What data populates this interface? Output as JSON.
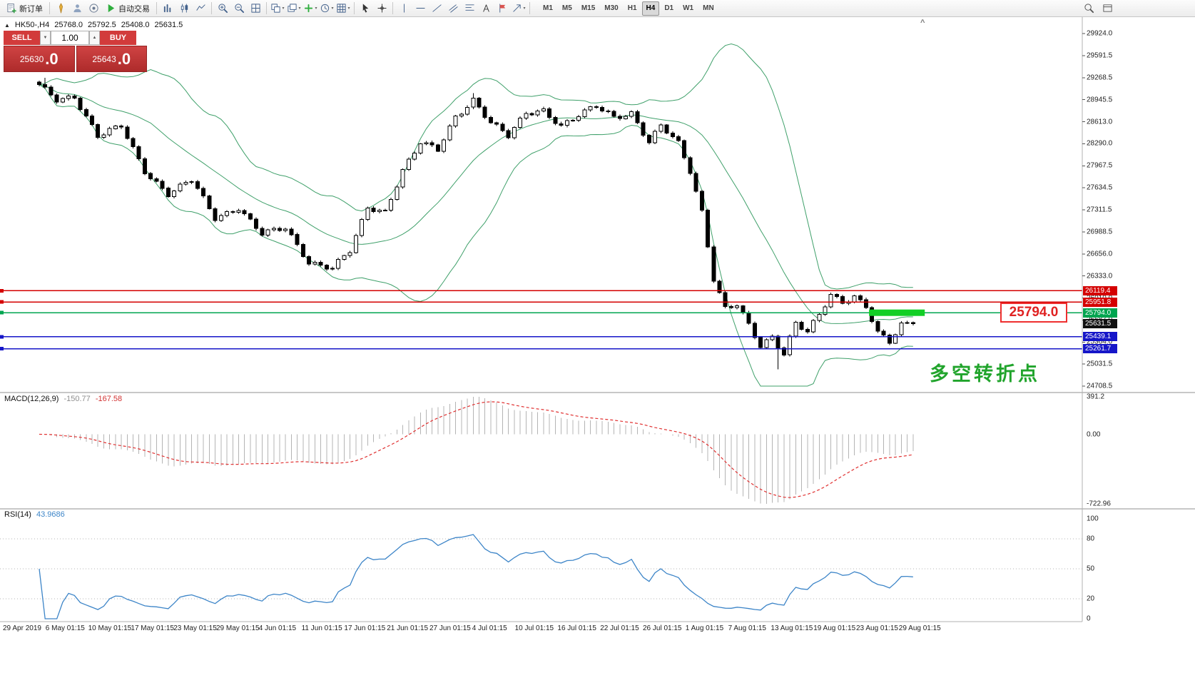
{
  "icons": {
    "caret_down": "▼",
    "caret_up": "▲",
    "dropdown": "▾",
    "panel_toggle": "▲",
    "shift": "^"
  },
  "toolbar": {
    "new_order_label": "新订单",
    "algo_label": "自动交易",
    "timeframes": [
      "M1",
      "M5",
      "M15",
      "M30",
      "H1",
      "H4",
      "D1",
      "W1",
      "MN"
    ],
    "active_timeframe": "H4"
  },
  "header": {
    "symbol_period": "HK50-,H4",
    "open": "25768.0",
    "high": "25792.5",
    "low": "25408.0",
    "close": "25631.5"
  },
  "trade": {
    "sell_label": "SELL",
    "buy_label": "BUY",
    "volume": "1.00",
    "sell_price": "25630",
    "sell_frac": ".0",
    "buy_price": "25643",
    "buy_frac": ".0"
  },
  "chart": {
    "bars": 150,
    "candle_keyframes": [
      [
        0,
        29150
      ],
      [
        3,
        28950
      ],
      [
        6,
        29000
      ],
      [
        10,
        28400
      ],
      [
        14,
        28550
      ],
      [
        18,
        27900
      ],
      [
        22,
        27550
      ],
      [
        26,
        27750
      ],
      [
        30,
        27200
      ],
      [
        34,
        27350
      ],
      [
        38,
        26950
      ],
      [
        42,
        27050
      ],
      [
        46,
        26550
      ],
      [
        50,
        26450
      ],
      [
        53,
        26700
      ],
      [
        56,
        27350
      ],
      [
        59,
        27300
      ],
      [
        62,
        27900
      ],
      [
        65,
        28300
      ],
      [
        68,
        28200
      ],
      [
        71,
        28700
      ],
      [
        74,
        28950
      ],
      [
        77,
        28600
      ],
      [
        80,
        28400
      ],
      [
        83,
        28750
      ],
      [
        86,
        28800
      ],
      [
        89,
        28550
      ],
      [
        92,
        28700
      ],
      [
        95,
        28850
      ],
      [
        98,
        28700
      ],
      [
        101,
        28750
      ],
      [
        104,
        28300
      ],
      [
        106,
        28550
      ],
      [
        109,
        28300
      ],
      [
        111,
        27900
      ],
      [
        113,
        27300
      ],
      [
        115,
        26300
      ],
      [
        117,
        25850
      ],
      [
        119,
        25900
      ],
      [
        121,
        25600
      ],
      [
        123,
        25300
      ],
      [
        125,
        25450
      ],
      [
        127,
        25200
      ],
      [
        129,
        25650
      ],
      [
        131,
        25500
      ],
      [
        133,
        25750
      ],
      [
        135,
        26050
      ],
      [
        137,
        25950
      ],
      [
        139,
        26050
      ],
      [
        141,
        25900
      ],
      [
        143,
        25500
      ],
      [
        145,
        25350
      ],
      [
        147,
        25600
      ],
      [
        149,
        25631.5
      ]
    ],
    "wick_overrides": [
      {
        "i": 1,
        "high": 29270
      },
      {
        "i": 74,
        "high": 29040
      },
      {
        "i": 126,
        "low": 24958
      }
    ],
    "hlines": [
      {
        "price": 26119.4,
        "label": "26119.4",
        "color": "#d40000"
      },
      {
        "price": 25951.8,
        "label": "25951.8",
        "color": "#d40000"
      },
      {
        "price": 25794.0,
        "label": "25794.0",
        "color": "#00a550"
      },
      {
        "price": 25439.1,
        "label": "25439.1",
        "color": "#1616c8"
      },
      {
        "price": 25261.7,
        "label": "25261.7",
        "color": "#1616c8"
      }
    ],
    "bid": {
      "price": 25631.5,
      "label": "25631.5"
    },
    "highlight_rect": {
      "price": 25794.0,
      "from_bar": 141.5,
      "to_bar": 151
    },
    "callout": "25794.0",
    "annotation": "多空转折点",
    "price_axis_labels": [
      "29924.0",
      "29591.5",
      "29268.5",
      "28945.5",
      "28613.0",
      "28290.0",
      "27967.5",
      "27634.5",
      "27311.5",
      "26988.5",
      "26656.0",
      "26333.0",
      "26010.0",
      "25687.0",
      "25364.0",
      "25031.5",
      "24708.5"
    ],
    "time_axis_labels": [
      "29 Apr 2019",
      "6 May 01:15",
      "10 May 01:15",
      "17 May 01:15",
      "23 May 01:15",
      "29 May 01:15",
      "4 Jun 01:15",
      "11 Jun 01:15",
      "17 Jun 01:15",
      "21 Jun 01:15",
      "27 Jun 01:15",
      "4 Jul 01:15",
      "10 Jul 01:15",
      "16 Jul 01:15",
      "22 Jul 01:15",
      "26 Jul 01:15",
      "1 Aug 01:15",
      "7 Aug 01:15",
      "13 Aug 01:15",
      "19 Aug 01:15",
      "23 Aug 01:15",
      "29 Aug 01:15"
    ]
  },
  "macd": {
    "title": "MACD(12,26,9)",
    "main": "-150.77",
    "signal": "-167.58",
    "axis_top": "391.2",
    "axis_zero": "0.00",
    "axis_bottom": "-722.96"
  },
  "rsi": {
    "title": "RSI(14)",
    "value": "43.9686",
    "axis_top": "100",
    "axis_bottom": "0",
    "levels": [
      {
        "value": 80,
        "label": "80"
      },
      {
        "value": 50,
        "label": "50"
      },
      {
        "value": 20,
        "label": "20"
      }
    ]
  },
  "colors": {
    "band": "#3fa06a",
    "hist": "#b4b4b4",
    "signal": "#e03030",
    "rsi_line": "#3d85c8",
    "highlight": "#12cf25",
    "bid_tag": "#111111"
  }
}
